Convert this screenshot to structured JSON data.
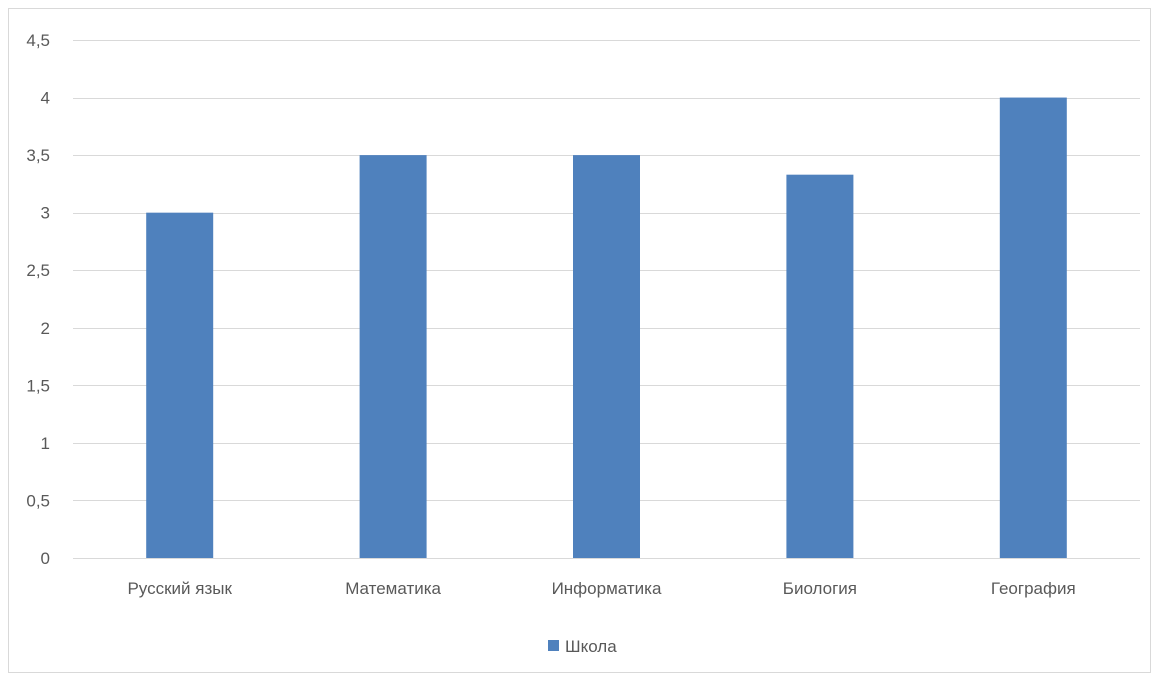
{
  "chart_data": {
    "type": "bar",
    "title": "",
    "xlabel": "",
    "ylabel": "",
    "categories": [
      "Русский язык",
      "Математика",
      "Информатика",
      "Биология",
      "География"
    ],
    "series": [
      {
        "name": "Школа",
        "values": [
          3,
          3.5,
          3.5,
          3.33,
          4
        ],
        "color": "#4f81bd"
      }
    ],
    "ylim": [
      0,
      4.5
    ],
    "yticks": [
      0,
      0.5,
      1,
      1.5,
      2,
      2.5,
      3,
      3.5,
      4,
      4.5
    ],
    "ytick_labels": [
      "0",
      "0,5",
      "1",
      "1,5",
      "2",
      "2,5",
      "3",
      "3,5",
      "4",
      "4,5"
    ],
    "grid": true,
    "legend_position": "bottom"
  }
}
